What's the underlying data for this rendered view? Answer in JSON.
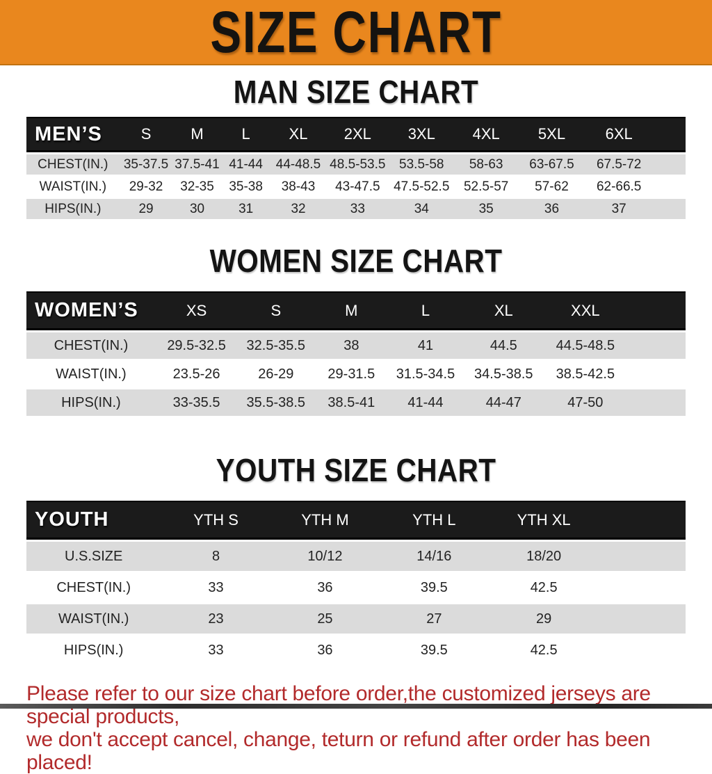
{
  "banner": {
    "title": "SIZE CHART",
    "bg_color": "#E9871E",
    "text_color": "#151310"
  },
  "sections": [
    {
      "heading": "MAN SIZE CHART",
      "table": {
        "header_label": "MEN’S",
        "columns": [
          "S",
          "M",
          "L",
          "XL",
          "2XL",
          "3XL",
          "4XL",
          "5XL",
          "6XL"
        ],
        "rows": [
          {
            "label": "CHEST(IN.)",
            "values": [
              "35-37.5",
              "37.5-41",
              "41-44",
              "44-48.5",
              "48.5-53.5",
              "53.5-58",
              "58-63",
              "63-67.5",
              "67.5-72"
            ]
          },
          {
            "label": "WAIST(IN.)",
            "values": [
              "29-32",
              "32-35",
              "35-38",
              "38-43",
              "43-47.5",
              "47.5-52.5",
              "52.5-57",
              "57-62",
              "62-66.5"
            ]
          },
          {
            "label": "HIPS(IN.)",
            "values": [
              "29",
              "30",
              "31",
              "32",
              "33",
              "34",
              "35",
              "36",
              "37"
            ]
          }
        ]
      }
    },
    {
      "heading": "WOMEN SIZE CHART",
      "table": {
        "header_label": "WOMEN’S",
        "columns": [
          "XS",
          "S",
          "M",
          "L",
          "XL",
          "XXL"
        ],
        "rows": [
          {
            "label": "CHEST(IN.)",
            "values": [
              "29.5-32.5",
              "32.5-35.5",
              "38",
              "41",
              "44.5",
              "44.5-48.5"
            ]
          },
          {
            "label": "WAIST(IN.)",
            "values": [
              "23.5-26",
              "26-29",
              "29-31.5",
              "31.5-34.5",
              "34.5-38.5",
              "38.5-42.5"
            ]
          },
          {
            "label": "HIPS(IN.)",
            "values": [
              "33-35.5",
              "35.5-38.5",
              "38.5-41",
              "41-44",
              "44-47",
              "47-50"
            ]
          }
        ]
      }
    },
    {
      "heading": "YOUTH SIZE CHART",
      "table": {
        "header_label": "YOUTH",
        "columns": [
          "YTH S",
          "YTH M",
          "YTH L",
          "YTH XL"
        ],
        "rows": [
          {
            "label": "U.S.SIZE",
            "values": [
              "8",
              "10/12",
              "14/16",
              "18/20"
            ]
          },
          {
            "label": "CHEST(IN.)",
            "values": [
              "33",
              "36",
              "39.5",
              "42.5"
            ]
          },
          {
            "label": "WAIST(IN.)",
            "values": [
              "23",
              "25",
              "27",
              "29"
            ]
          },
          {
            "label": "HIPS(IN.)",
            "values": [
              "33",
              "36",
              "39.5",
              "42.5"
            ]
          }
        ]
      }
    }
  ],
  "footer_note": {
    "lines": [
      "Please refer to our size chart before order,the customized jerseys are special products,",
      "we don't accept cancel, change, teturn or refund after order has been placed!"
    ],
    "color": "#B22A2B"
  },
  "colors": {
    "banner_orange": "#E9871E",
    "table_header_bar": "#1B1B1B",
    "row_stripe_gray": "#DBDBDB",
    "note_red": "#B22A2B"
  }
}
